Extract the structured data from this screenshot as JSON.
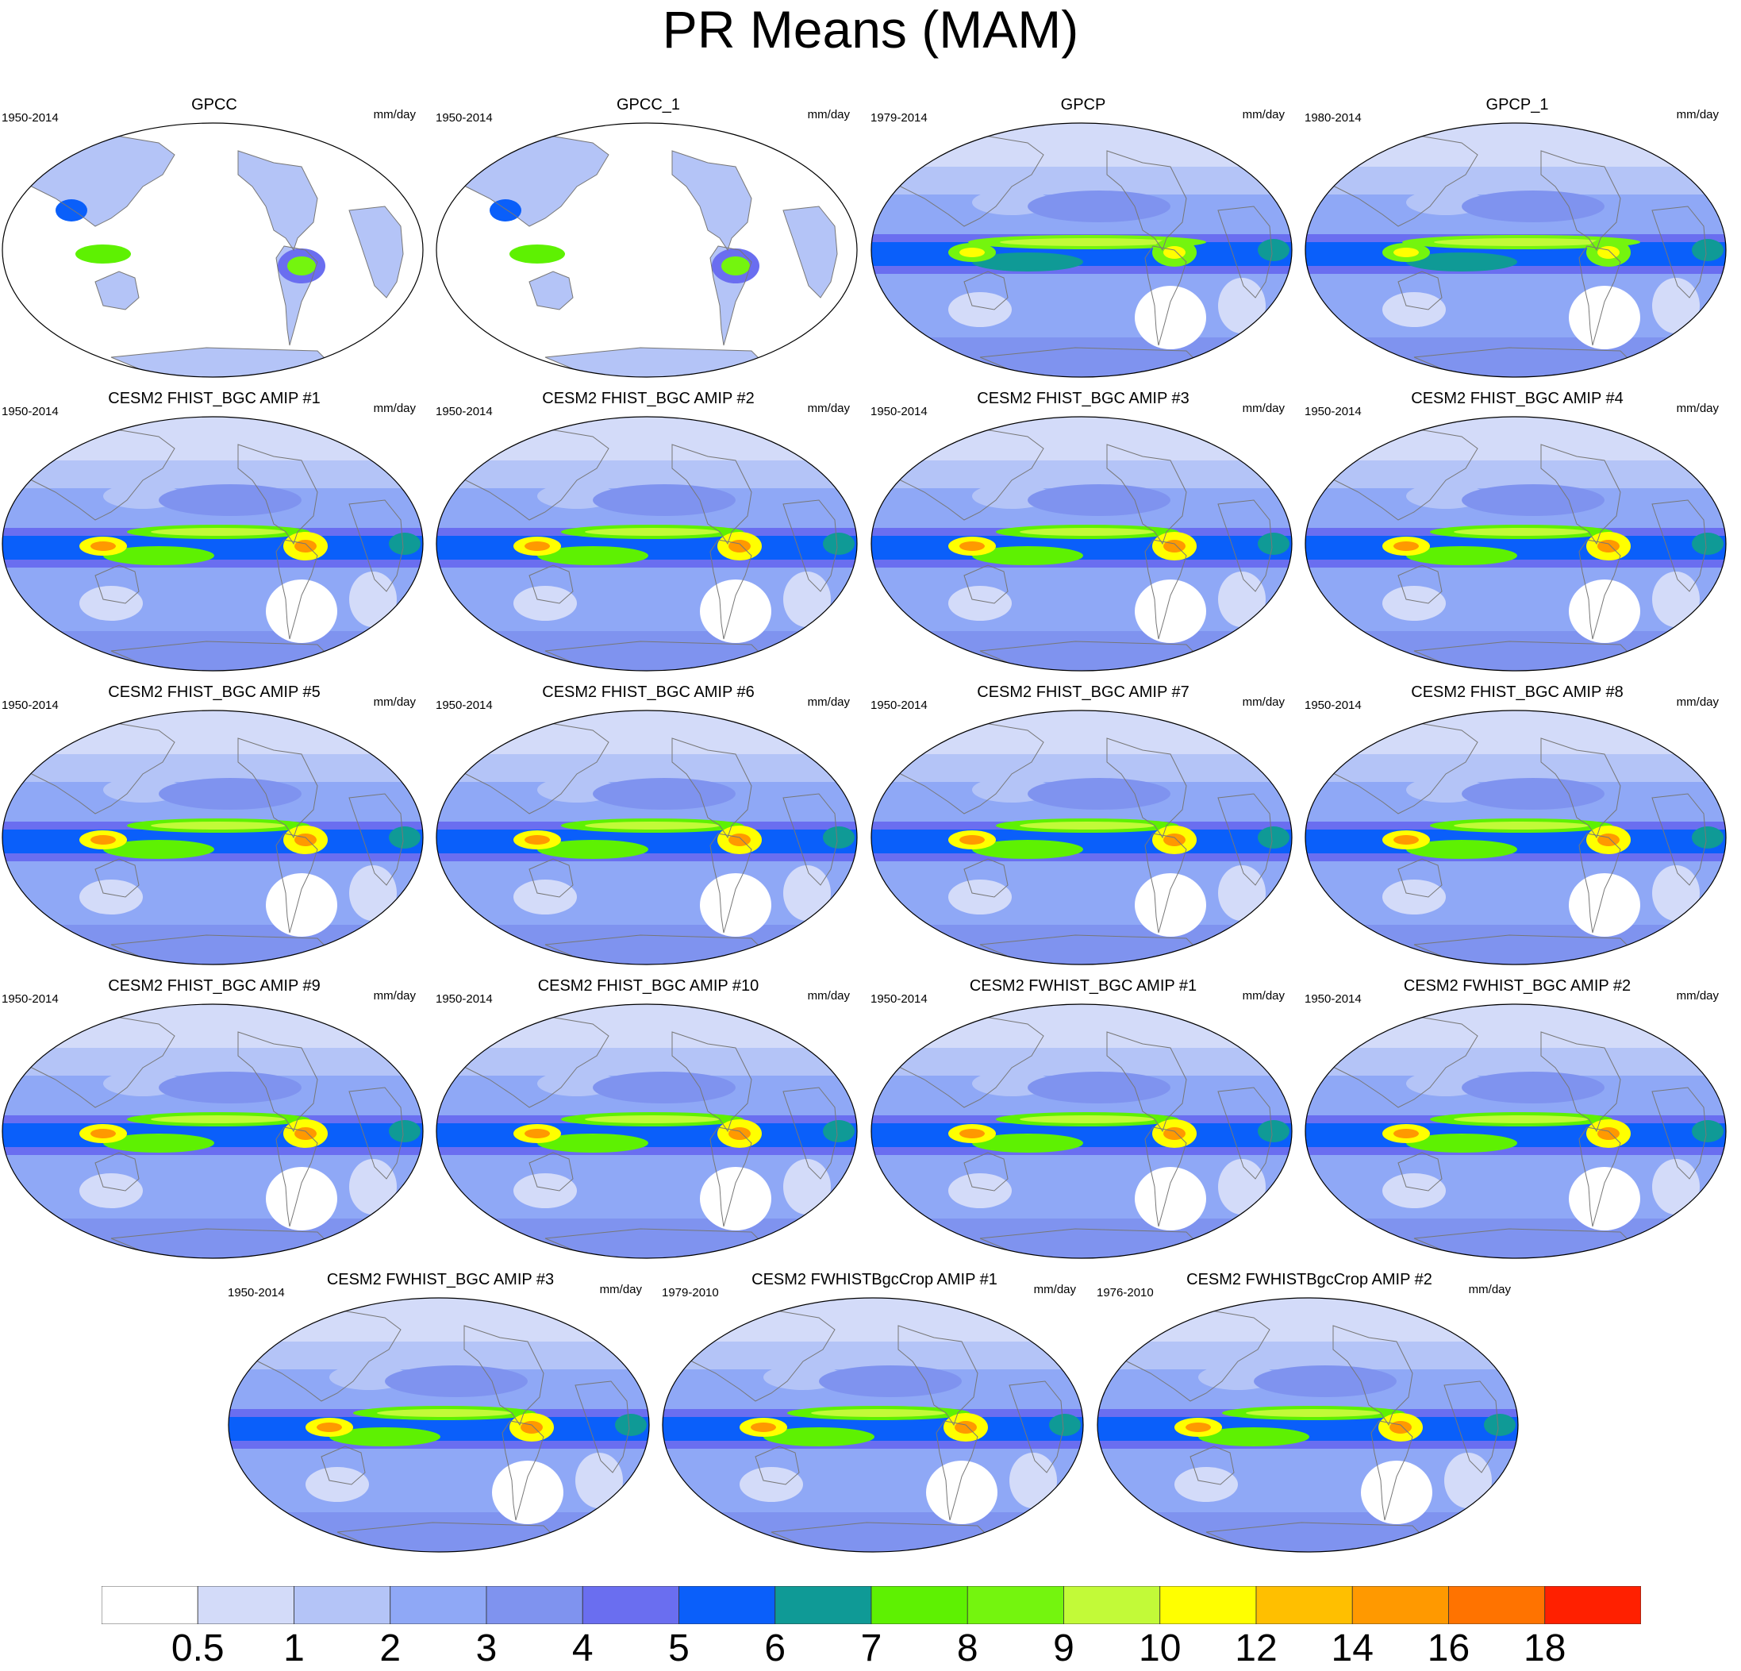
{
  "title": "PR Means (MAM)",
  "panels": [
    {
      "title": "GPCC",
      "period": "1950-2014",
      "units": "mm/day",
      "kind": "obs_land"
    },
    {
      "title": "GPCC_1",
      "period": "1950-2014",
      "units": "mm/day",
      "kind": "obs_land"
    },
    {
      "title": "GPCP",
      "period": "1979-2014",
      "units": "mm/day",
      "kind": "obs"
    },
    {
      "title": "GPCP_1",
      "period": "1980-2014",
      "units": "mm/day",
      "kind": "obs"
    },
    {
      "title": "CESM2 FHIST_BGC AMIP #1",
      "period": "1950-2014",
      "units": "mm/day",
      "kind": "model"
    },
    {
      "title": "CESM2 FHIST_BGC AMIP #2",
      "period": "1950-2014",
      "units": "mm/day",
      "kind": "model"
    },
    {
      "title": "CESM2 FHIST_BGC AMIP #3",
      "period": "1950-2014",
      "units": "mm/day",
      "kind": "model"
    },
    {
      "title": "CESM2 FHIST_BGC AMIP #4",
      "period": "1950-2014",
      "units": "mm/day",
      "kind": "model"
    },
    {
      "title": "CESM2 FHIST_BGC AMIP #5",
      "period": "1950-2014",
      "units": "mm/day",
      "kind": "model"
    },
    {
      "title": "CESM2 FHIST_BGC AMIP #6",
      "period": "1950-2014",
      "units": "mm/day",
      "kind": "model"
    },
    {
      "title": "CESM2 FHIST_BGC AMIP #7",
      "period": "1950-2014",
      "units": "mm/day",
      "kind": "model"
    },
    {
      "title": "CESM2 FHIST_BGC AMIP #8",
      "period": "1950-2014",
      "units": "mm/day",
      "kind": "model"
    },
    {
      "title": "CESM2 FHIST_BGC AMIP #9",
      "period": "1950-2014",
      "units": "mm/day",
      "kind": "model"
    },
    {
      "title": "CESM2 FHIST_BGC AMIP #10",
      "period": "1950-2014",
      "units": "mm/day",
      "kind": "model"
    },
    {
      "title": "CESM2 FWHIST_BGC AMIP #1",
      "period": "1950-2014",
      "units": "mm/day",
      "kind": "model"
    },
    {
      "title": "CESM2 FWHIST_BGC AMIP #2",
      "period": "1950-2014",
      "units": "mm/day",
      "kind": "model"
    },
    {
      "title": "CESM2 FWHIST_BGC AMIP #3",
      "period": "1950-2014",
      "units": "mm/day",
      "kind": "model"
    },
    {
      "title": "CESM2 FWHISTBgcCrop AMIP #1",
      "period": "1979-2010",
      "units": "mm/day",
      "kind": "model"
    },
    {
      "title": "CESM2 FWHISTBgcCrop AMIP #2",
      "period": "1976-2010",
      "units": "mm/day",
      "kind": "model"
    }
  ],
  "chart_data": {
    "type": "heatmap",
    "title": "PR Means (MAM)",
    "variable": "PR",
    "units": "mm/day",
    "season": "MAM",
    "colorbar": {
      "levels": [
        "0.5",
        "1",
        "2",
        "3",
        "4",
        "5",
        "6",
        "7",
        "8",
        "9",
        "10",
        "12",
        "14",
        "16",
        "18"
      ],
      "colors": [
        "#ffffff",
        "#d3dbf9",
        "#b4c4f7",
        "#8fa8f6",
        "#7f93ef",
        "#6a6ef0",
        "#0a5ffa",
        "#0f9a96",
        "#5ef102",
        "#74f50e",
        "#c2fa38",
        "#ffff00",
        "#ffbf00",
        "#ff9900",
        "#ff7300",
        "#ff2000"
      ]
    }
  }
}
